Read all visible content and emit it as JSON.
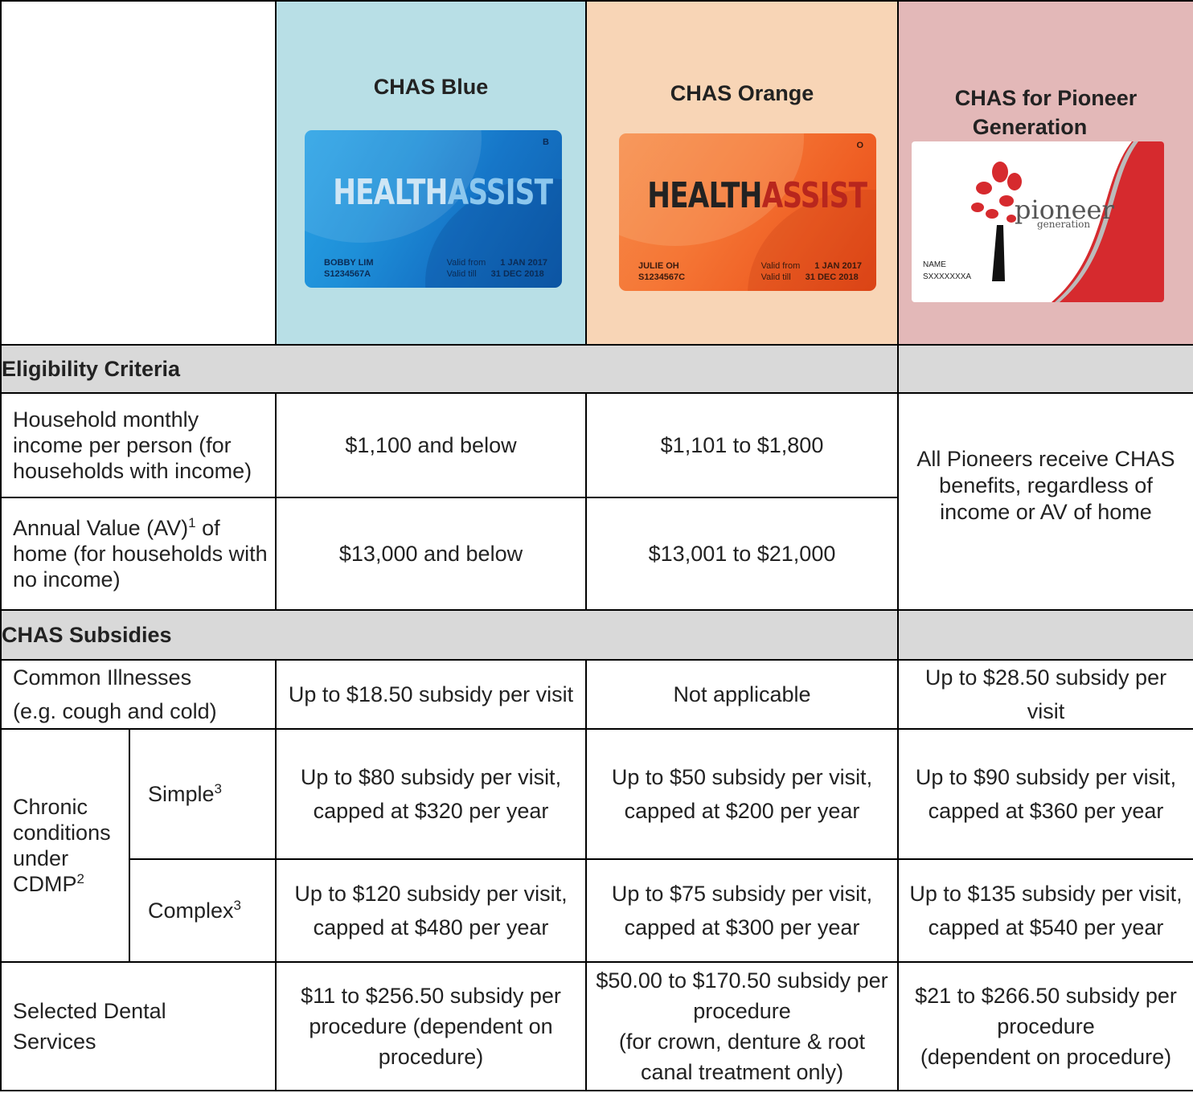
{
  "header": {
    "blue": {
      "title": "CHAS Blue",
      "card": {
        "brand_a": "HEALTH",
        "brand_b": "ASSIST",
        "tier": "B",
        "name": "BOBBY LIM",
        "id": "S1234567A",
        "valid_from_label": "Valid from",
        "valid_from": "1 JAN 2017",
        "valid_till_label": "Valid till",
        "valid_till": "31 DEC 2018"
      }
    },
    "orange": {
      "title": "CHAS Orange",
      "card": {
        "brand_a": "HEALTH",
        "brand_b": "ASSIST",
        "tier": "O",
        "name": "JULIE OH",
        "id": "S1234567C",
        "valid_from_label": "Valid from",
        "valid_from": "1 JAN 2017",
        "valid_till_label": "Valid till",
        "valid_till": "31 DEC 2018"
      }
    },
    "pioneer": {
      "title_line1": "CHAS for Pioneer",
      "title_line2": "Generation",
      "card": {
        "logo_text": "pioneer",
        "logo_sub": "generation",
        "name": "NAME",
        "id": "SXXXXXXXA"
      }
    }
  },
  "sections": {
    "eligibility": "Eligibility Criteria",
    "subsidies": "CHAS Subsidies"
  },
  "rows": {
    "income": {
      "label": "Household monthly income per person (for households with income)",
      "blue": "$1,100 and below",
      "orange": "$1,101 to $1,800"
    },
    "av": {
      "label_a": "Annual Value (AV)",
      "label_sup": "1",
      "label_b": "of home (for households with no income)",
      "blue": "$13,000 and below",
      "orange": "$13,001 to $21,000"
    },
    "pioneer_eligibility": "All Pioneers receive CHAS benefits, regardless of income or AV of home",
    "common": {
      "label_1": "Common Illnesses",
      "label_2": "(e.g. cough and cold)",
      "blue": "Up to $18.50 subsidy per visit",
      "orange": "Not applicable",
      "pioneer": "Up to $28.50 subsidy per visit"
    },
    "chronic": {
      "label": "Chronic conditions under CDMP",
      "label_sup": "2",
      "simple": {
        "label": "Simple",
        "label_sup": "3",
        "blue_1": "Up to $80 subsidy per visit,",
        "blue_2": "capped at $320 per year",
        "orange_1": "Up to $50 subsidy per visit,",
        "orange_2": "capped at $200 per year",
        "pioneer": "Up to $90 subsidy per visit, capped at $360 per year"
      },
      "complex": {
        "label": "Complex",
        "label_sup": "3",
        "blue_1": "Up to $120 subsidy per visit,",
        "blue_2": "capped at $480 per year",
        "orange_1": "Up to $75 subsidy per visit,",
        "orange_2": "capped at $300 per year",
        "pioneer": "Up to $135 subsidy per visit, capped at $540 per year"
      }
    },
    "dental": {
      "label_1": "Selected Dental",
      "label_2": "Services",
      "blue": "$11 to $256.50 subsidy per procedure (dependent on procedure)",
      "orange_1": "$50.00 to $170.50 subsidy per procedure",
      "orange_2": "(for crown, denture & root canal treatment only)",
      "pioneer_1": "$21 to $266.50 subsidy per procedure",
      "pioneer_2": "(dependent on procedure)"
    }
  }
}
